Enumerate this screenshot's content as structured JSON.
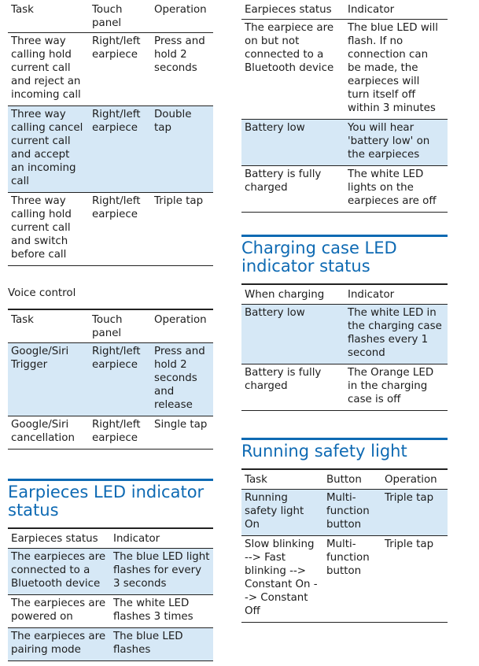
{
  "left": {
    "call_table": {
      "headers": [
        "Task",
        "Touch panel",
        "Operation"
      ],
      "rows": [
        {
          "task": "Three way calling hold current call and reject an incoming call",
          "panel": "Right/left earpiece",
          "operation": "Press and hold 2 seconds"
        },
        {
          "task": "Three way calling cancel current call and accept an incoming call",
          "panel": "Right/left earpiece",
          "operation": "Double tap"
        },
        {
          "task": "Three way calling hold current call and switch before call",
          "panel": "Right/left earpiece",
          "operation": "Triple tap"
        }
      ]
    },
    "voice_label": "Voice control",
    "voice_table": {
      "headers": [
        "Task",
        "Touch panel",
        "Operation"
      ],
      "rows": [
        {
          "task": "Google/Siri Trigger",
          "panel": "Right/left earpiece",
          "operation": "Press and hold 2 seconds and release"
        },
        {
          "task": "Google/Siri cancellation",
          "panel": "Right/left earpiece",
          "operation": "Single tap"
        }
      ]
    },
    "earpieces_led": {
      "title": "Earpieces LED indicator status",
      "headers": [
        "Earpieces status",
        "Indicator"
      ],
      "rows": [
        {
          "status": "The earpieces are connected to a Bluetooth device",
          "indicator": "The blue LED light flashes for every 3 seconds"
        },
        {
          "status": "The earpieces are powered on",
          "indicator": "The white LED flashes 3 times"
        },
        {
          "status": "The earpieces are pairing mode",
          "indicator": "The blue LED flashes"
        }
      ]
    }
  },
  "right": {
    "earpieces_cont": {
      "headers": [
        "Earpieces status",
        "Indicator"
      ],
      "rows": [
        {
          "status": "The earpiece are on but not connected to a Bluetooth device",
          "indicator": "The blue LED will flash. If no connection can be made, the earpieces will turn itself off within 3 minutes"
        },
        {
          "status": "Battery low",
          "indicator": "You will hear 'battery low' on the earpieces"
        },
        {
          "status": "Battery is fully charged",
          "indicator": "The white LED lights on the earpieces are off"
        }
      ]
    },
    "charging_case": {
      "title": "Charging case LED indicator status",
      "headers": [
        "When charging",
        "Indicator"
      ],
      "rows": [
        {
          "status": "Battery low",
          "indicator": "The white LED in the charging case flashes every 1 second"
        },
        {
          "status": "Battery is fully charged",
          "indicator": "The Orange LED in the charging case is off"
        }
      ]
    },
    "running_light": {
      "title": "Running safety light",
      "headers": [
        "Task",
        "Button",
        "Operation"
      ],
      "rows": [
        {
          "task": "Running safety light On",
          "button": "Multi-function button",
          "operation": "Triple tap"
        },
        {
          "task": "Slow blinking --> Fast blinking --> Constant On --> Constant Off",
          "button": "Multi-function button",
          "operation": "Triple tap"
        }
      ]
    }
  }
}
